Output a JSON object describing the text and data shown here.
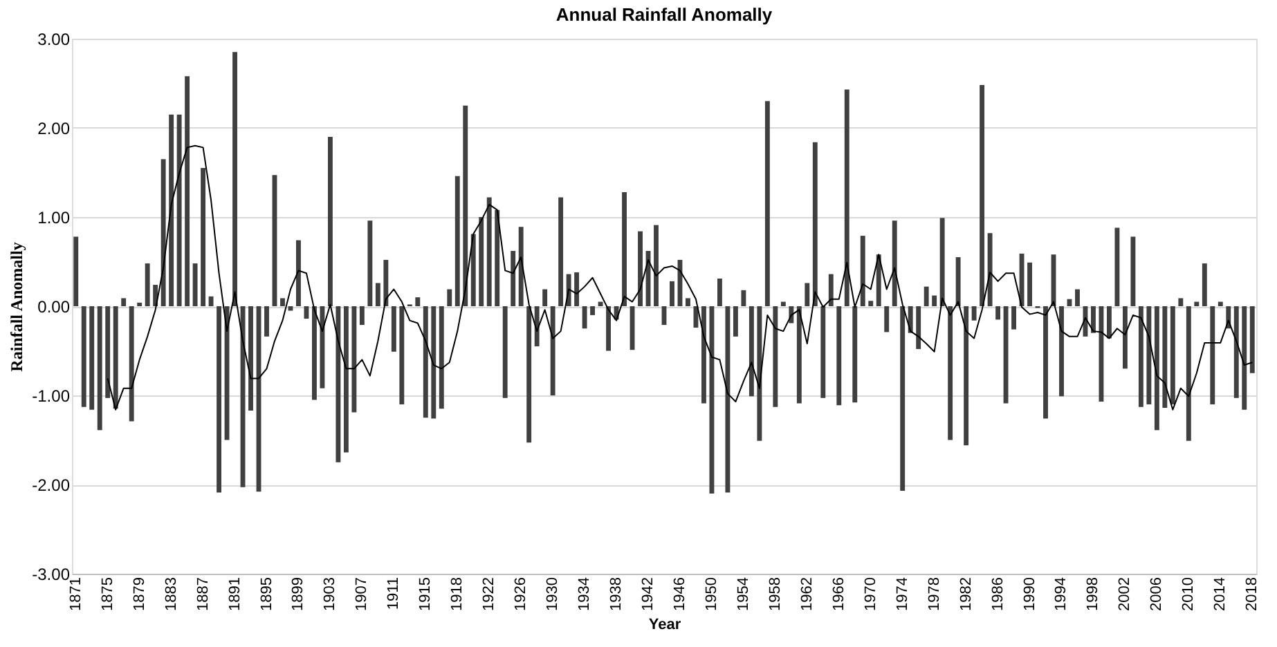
{
  "chart_data": {
    "type": "bar",
    "title": "Annual Rainfall Anomally",
    "xlabel": "Year",
    "ylabel": "Rainfall Anomally",
    "categories": [
      "1871",
      null,
      null,
      null,
      "1875",
      null,
      null,
      null,
      "1879",
      null,
      null,
      null,
      "1883",
      null,
      null,
      null,
      "1887",
      null,
      null,
      null,
      "1891",
      null,
      null,
      null,
      "1895",
      null,
      null,
      null,
      "1899",
      null,
      null,
      null,
      "1903",
      null,
      null,
      null,
      "1907",
      null,
      null,
      null,
      "1911",
      null,
      null,
      null,
      "1915",
      null,
      null,
      null,
      "1918",
      null,
      null,
      null,
      "1922",
      null,
      null,
      null,
      "1926",
      null,
      null,
      null,
      "1930",
      null,
      null,
      null,
      "1934",
      null,
      null,
      null,
      "1938",
      null,
      null,
      null,
      "1942",
      null,
      null,
      null,
      "1946",
      null,
      null,
      null,
      "1950",
      null,
      null,
      null,
      "1954",
      null,
      null,
      null,
      "1958",
      null,
      null,
      null,
      "1962",
      null,
      null,
      null,
      "1966",
      null,
      null,
      null,
      "1970",
      null,
      null,
      null,
      "1974",
      null,
      null,
      null,
      "1978",
      null,
      null,
      null,
      "1982",
      null,
      null,
      null,
      "1986",
      null,
      null,
      null,
      "1990",
      null,
      null,
      null,
      "1994",
      null,
      null,
      null,
      "1998",
      null,
      null,
      null,
      "2002",
      null,
      null,
      null,
      "2006",
      null,
      null,
      null,
      "2010",
      null,
      null,
      null,
      "2014",
      null,
      null,
      null,
      "2018"
    ],
    "series": [
      {
        "color": "#404040",
        "values": [
          0.78,
          -1.13,
          -1.16,
          -1.39,
          -1.03,
          -1.15,
          0.09,
          -1.29,
          0.04,
          0.48,
          0.24,
          1.65,
          2.15,
          2.15,
          2.58,
          0.48,
          1.55,
          0.11,
          -2.09,
          -1.5,
          2.85,
          -2.03,
          -1.17,
          -2.08,
          -0.34,
          1.47,
          0.09,
          -0.05,
          0.74,
          -0.14,
          -1.05,
          -0.92,
          1.9,
          -1.75,
          -1.64,
          -1.19,
          -0.21,
          0.96,
          0.26,
          0.52,
          -0.51,
          -1.1,
          0.02,
          0.1,
          -1.25,
          -1.26,
          -1.15,
          0.19,
          1.46,
          2.25,
          0.81,
          1.0,
          1.22,
          1.08,
          -1.03,
          0.62,
          0.89,
          -1.53,
          -0.45,
          0.19,
          -1.0,
          1.22,
          0.36,
          0.38,
          -0.25,
          -0.1,
          0.05,
          -0.5,
          -0.15,
          1.28,
          -0.49,
          0.84,
          0.62,
          0.91,
          -0.21,
          0.28,
          0.52,
          0.09,
          -0.24,
          -1.09,
          -2.1,
          0.31,
          -2.09,
          -0.34,
          0.18,
          -1.01,
          -1.51,
          2.3,
          -1.13,
          0.05,
          -0.19,
          -1.09,
          0.26,
          1.84,
          -1.03,
          0.36,
          -1.11,
          2.43,
          -1.08,
          0.79,
          0.06,
          0.58,
          -0.29,
          0.96,
          -2.07,
          -0.3,
          -0.48,
          0.22,
          0.12,
          0.99,
          -1.5,
          0.55,
          -1.56,
          -0.16,
          2.48,
          0.82,
          -0.15,
          -1.09,
          -0.26,
          0.59,
          0.49,
          -0.02,
          -1.26,
          0.58,
          -1.01,
          0.08,
          0.19,
          -0.34,
          -0.3,
          -1.07,
          -0.36,
          0.88,
          -0.7,
          0.78,
          -1.13,
          -1.1,
          -1.39,
          -1.14,
          -1.1,
          0.09,
          -1.51,
          0.05,
          0.48,
          -1.1,
          0.05,
          -0.25,
          -1.03,
          -1.16,
          -0.75
        ]
      },
      {
        "type": "line",
        "color": "#000000",
        "values": [
          null,
          null,
          null,
          null,
          -0.81,
          -1.16,
          -0.92,
          -0.92,
          -0.6,
          -0.34,
          -0.04,
          0.43,
          1.14,
          1.49,
          1.78,
          1.8,
          1.78,
          1.19,
          0.37,
          -0.28,
          0.16,
          -0.39,
          -0.81,
          -0.81,
          -0.7,
          -0.39,
          -0.16,
          0.19,
          0.4,
          0.37,
          -0.04,
          -0.28,
          0.02,
          -0.39,
          -0.7,
          -0.7,
          -0.6,
          -0.78,
          -0.39,
          0.08,
          0.19,
          0.05,
          -0.16,
          -0.19,
          -0.39,
          -0.66,
          -0.7,
          -0.63,
          -0.28,
          0.19,
          0.81,
          0.96,
          1.14,
          1.08,
          0.4,
          0.37,
          0.55,
          0.02,
          -0.28,
          -0.04,
          -0.36,
          -0.28,
          0.19,
          0.14,
          0.22,
          0.32,
          0.14,
          -0.04,
          -0.16,
          0.11,
          0.05,
          0.19,
          0.52,
          0.34,
          0.43,
          0.45,
          0.4,
          0.25,
          0.08,
          -0.34,
          -0.57,
          -0.6,
          -0.98,
          -1.07,
          -0.84,
          -0.63,
          -0.92,
          -0.1,
          -0.25,
          -0.28,
          -0.1,
          -0.04,
          -0.42,
          0.16,
          -0.01,
          0.08,
          0.08,
          0.49,
          -0.01,
          0.25,
          0.19,
          0.58,
          0.19,
          0.43,
          0.02,
          -0.28,
          -0.34,
          -0.42,
          -0.51,
          0.09,
          -0.1,
          0.05,
          -0.28,
          -0.36,
          -0.04,
          0.38,
          0.28,
          0.37,
          0.37,
          -0.01,
          -0.09,
          -0.07,
          -0.1,
          0.05,
          -0.28,
          -0.34,
          -0.34,
          -0.13,
          -0.28,
          -0.29,
          -0.36,
          -0.25,
          -0.32,
          -0.1,
          -0.13,
          -0.34,
          -0.78,
          -0.86,
          -1.16,
          -0.92,
          -1.01,
          -0.75,
          -0.41,
          -0.41,
          -0.41,
          -0.16,
          -0.39,
          -0.66,
          -0.63
        ]
      }
    ],
    "ylim": [
      -3,
      3
    ],
    "yticks": [
      {
        "value": -3,
        "label": "-3.00"
      },
      {
        "value": -2,
        "label": "-2.00"
      },
      {
        "value": -1,
        "label": "-1.00"
      },
      {
        "value": 0,
        "label": "0.00"
      },
      {
        "value": 1,
        "label": "1.00"
      },
      {
        "value": 2,
        "label": "2.00"
      },
      {
        "value": 3,
        "label": "3.00"
      }
    ],
    "grid": "y",
    "marker": "none",
    "line_style": "solid"
  }
}
